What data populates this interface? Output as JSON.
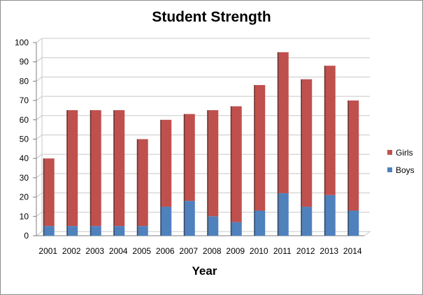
{
  "chart_data": {
    "type": "bar",
    "stacked": true,
    "title": "Student Strength",
    "xlabel": "Year",
    "ylabel": "",
    "ylim": [
      0,
      100
    ],
    "yticks": [
      0,
      10,
      20,
      30,
      40,
      50,
      60,
      70,
      80,
      90,
      100
    ],
    "grid": true,
    "legend_position": "right",
    "categories": [
      "2001",
      "2002",
      "2003",
      "2004",
      "2005",
      "2006",
      "2007",
      "2008",
      "2009",
      "2010",
      "2011",
      "2012",
      "2013",
      "2014"
    ],
    "series": [
      {
        "name": "Boys",
        "color": "#4f81bd",
        "values": [
          5,
          5,
          5,
          5,
          5,
          15,
          18,
          10,
          7,
          13,
          22,
          15,
          21,
          13
        ]
      },
      {
        "name": "Girls",
        "color": "#c0504d",
        "values": [
          35,
          60,
          60,
          60,
          45,
          45,
          45,
          55,
          60,
          65,
          73,
          66,
          67,
          57
        ]
      }
    ]
  }
}
